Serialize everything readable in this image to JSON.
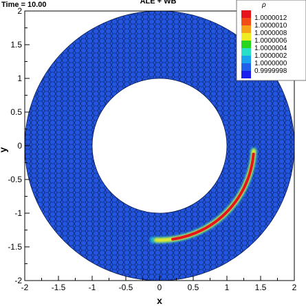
{
  "header": {
    "time_text": "Time = 10.00",
    "title": "ALE + WB"
  },
  "chart_data": {
    "type": "heatmap",
    "xlabel": "x",
    "ylabel": "y",
    "xlim": [
      -2,
      2
    ],
    "ylim": [
      -2,
      2
    ],
    "x_ticks": [
      "-2",
      "-1.5",
      "-1",
      "-0.5",
      "0",
      "0.5",
      "1",
      "1.5",
      "2"
    ],
    "y_ticks": [
      "-2",
      "-1.5",
      "-1",
      "-0.5",
      "0",
      "0.5",
      "1",
      "1.5",
      "2"
    ],
    "domain": {
      "shape": "annulus",
      "inner_radius": 1.0,
      "outer_radius": 2.0
    },
    "background_value": 1.0,
    "feature": {
      "description_value_peak": 1.0000012,
      "radius": 1.4,
      "angle_start_deg": -90,
      "angle_end_deg": -3
    },
    "colorbar": {
      "title": "ρ",
      "labels": [
        "1.0000012",
        "1.0000010",
        "1.0000008",
        "1.0000006",
        "1.0000004",
        "1.0000002",
        "1.0000000",
        "0.9999998"
      ],
      "colors": [
        "#e8141b",
        "#f24d17",
        "#f5a318",
        "#eded22",
        "#27d41e",
        "#28e0c7",
        "#1aa4ee",
        "#2060ea",
        "#1a1ff0"
      ]
    },
    "grid": false,
    "legend_position": "top-right"
  }
}
